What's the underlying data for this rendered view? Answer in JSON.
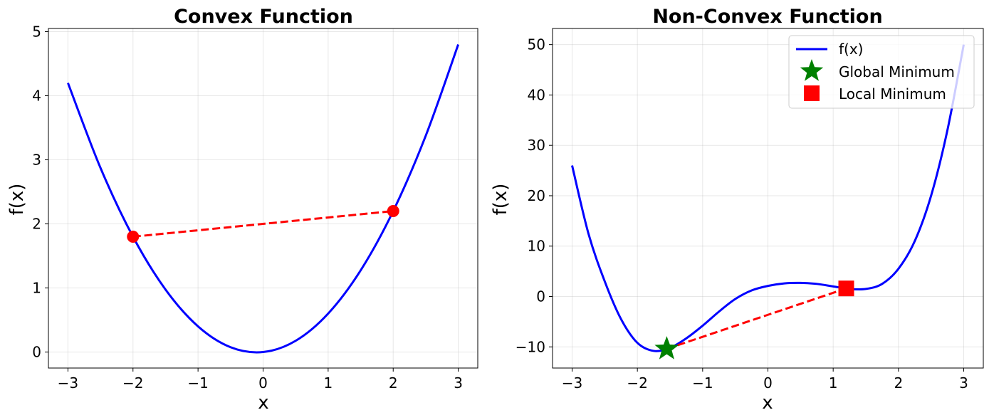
{
  "chart_data": [
    {
      "type": "line",
      "title": "Convex Function",
      "xlabel": "x",
      "ylabel": "f(x)",
      "xlim": [
        -3.3,
        3.3
      ],
      "ylim": [
        -0.25,
        5.05
      ],
      "xticks": [
        -3,
        -2,
        -1,
        0,
        1,
        2,
        3
      ],
      "xtick_labels": [
        "−3",
        "−2",
        "−1",
        "0",
        "1",
        "2",
        "3"
      ],
      "yticks": [
        0,
        1,
        2,
        3,
        4,
        5
      ],
      "ytick_labels": [
        "0",
        "1",
        "2",
        "3",
        "4",
        "5"
      ],
      "grid": true,
      "curve": {
        "color": "#0000ff",
        "x": [
          -3.0,
          -2.5,
          -2.0,
          -1.5,
          -1.0,
          -0.5,
          0.0,
          0.5,
          1.0,
          1.5,
          2.0,
          2.5,
          3.0
        ],
        "y": [
          4.2,
          2.875,
          1.8,
          0.975,
          0.4,
          0.075,
          0.0,
          0.175,
          0.6,
          1.275,
          2.2,
          3.375,
          4.8
        ]
      },
      "chord": {
        "color": "#ff0000",
        "style": "dashed",
        "points": [
          {
            "x": -2,
            "y": 1.8
          },
          {
            "x": 2,
            "y": 2.2
          }
        ]
      }
    },
    {
      "type": "line",
      "title": "Non-Convex Function",
      "xlabel": "x",
      "ylabel": "f(x)",
      "xlim": [
        -3.3,
        3.3
      ],
      "ylim": [
        -14.2,
        53.2
      ],
      "xticks": [
        -3,
        -2,
        -1,
        0,
        1,
        2,
        3
      ],
      "xtick_labels": [
        "−3",
        "−2",
        "−1",
        "0",
        "1",
        "2",
        "3"
      ],
      "yticks": [
        -10,
        0,
        10,
        20,
        30,
        40,
        50
      ],
      "ytick_labels": [
        "−10",
        "0",
        "10",
        "20",
        "30",
        "40",
        "50"
      ],
      "grid": true,
      "legend_position": "top-right",
      "curve": {
        "name": "f(x)",
        "color": "#0000ff",
        "x": [
          -3.0,
          -2.75,
          -2.5,
          -2.25,
          -2.0,
          -1.75,
          -1.5,
          -1.25,
          -1.0,
          -0.75,
          -0.5,
          -0.25,
          0.0,
          0.25,
          0.5,
          0.75,
          1.0,
          1.25,
          1.5,
          1.75,
          2.0,
          2.25,
          2.5,
          2.75,
          3.0
        ],
        "y": [
          26.0,
          12.5,
          3.0,
          -4.5,
          -9.2,
          -10.8,
          -10.2,
          -8.3,
          -5.8,
          -3.0,
          -0.5,
          1.2,
          2.1,
          2.6,
          2.7,
          2.5,
          2.0,
          1.5,
          1.5,
          2.5,
          5.5,
          11.0,
          20.0,
          33.0,
          50.0
        ]
      },
      "chord": {
        "color": "#ff0000",
        "style": "dashed",
        "points": [
          {
            "x": -1.55,
            "y": -10.4
          },
          {
            "x": 1.2,
            "y": 1.6
          }
        ]
      },
      "markers": [
        {
          "name": "Global Minimum",
          "shape": "star",
          "color": "#008000",
          "x": -1.55,
          "y": -10.4
        },
        {
          "name": "Local Minimum",
          "shape": "square",
          "color": "#ff0000",
          "x": 1.2,
          "y": 1.6
        }
      ]
    }
  ]
}
